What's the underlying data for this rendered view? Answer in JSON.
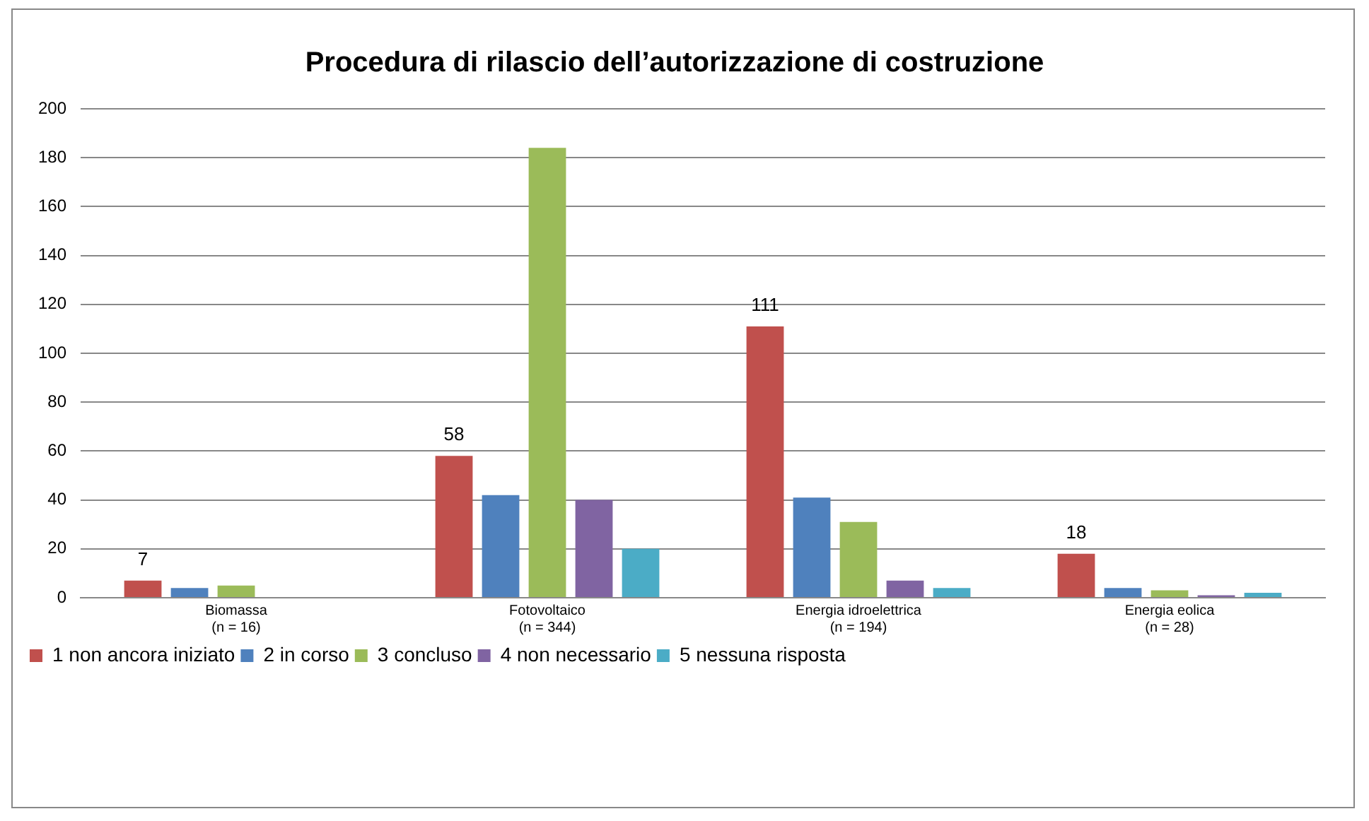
{
  "chart_data": {
    "type": "bar",
    "title": "Procedura di rilascio dell’autorizzazione di costruzione",
    "categories": [
      "Biomassa\n(n = 16)",
      "Fotovoltaico\n(n = 344)",
      "Energia idroelettrica\n(n = 194)",
      "Energia eolica\n(n = 28)"
    ],
    "series": [
      {
        "name": "1 non ancora iniziato",
        "color": "#c0504d",
        "values": [
          7,
          58,
          111,
          18
        ],
        "value_labels": [
          "7",
          "58",
          "111",
          "18"
        ]
      },
      {
        "name": "2 in corso",
        "color": "#4f81bd",
        "values": [
          4,
          42,
          41,
          4
        ]
      },
      {
        "name": "3 concluso",
        "color": "#9bbb59",
        "values": [
          5,
          184,
          31,
          3
        ]
      },
      {
        "name": "4 non necessario",
        "color": "#8064a2",
        "values": [
          0,
          40,
          7,
          1
        ]
      },
      {
        "name": "5 nessuna risposta",
        "color": "#4bacc6",
        "values": [
          0,
          20,
          4,
          2
        ]
      }
    ],
    "ylim": [
      0,
      200
    ],
    "yticks": [
      0,
      20,
      40,
      60,
      80,
      100,
      120,
      140,
      160,
      180,
      200
    ],
    "grid": "y",
    "legend": "bottom"
  }
}
